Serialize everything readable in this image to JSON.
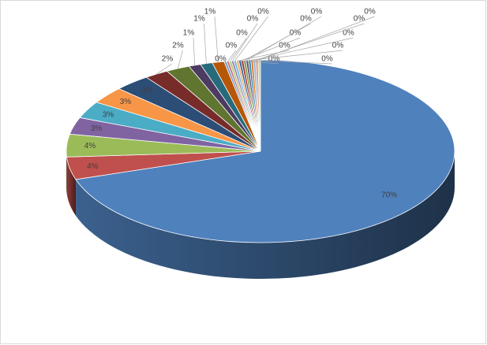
{
  "chart_data": {
    "type": "pie3d",
    "values": [
      70,
      4,
      4,
      3,
      3,
      3,
      3,
      2,
      2,
      1,
      1,
      1,
      0.2,
      0.2,
      0.2,
      0.2,
      0.2,
      0.2,
      0.2,
      0.2,
      0.2,
      0.2,
      0.2,
      0.2,
      0.2,
      0.2,
      0.2
    ],
    "value_labels": [
      "70%",
      "4%",
      "4%",
      "3%",
      "3%",
      "3%",
      "3%",
      "2%",
      "2%",
      "1%",
      "1%",
      "1%",
      "0%",
      "0%",
      "0%",
      "0%",
      "0%",
      "0%",
      "0%",
      "0%",
      "0%",
      "0%",
      "0%",
      "0%",
      "0%",
      "0%",
      "0%"
    ],
    "colors": [
      "#4f81bd",
      "#c0504d",
      "#9bbb59",
      "#8064a2",
      "#4bacc6",
      "#f79646",
      "#2c4d75",
      "#772c2a",
      "#5f7530",
      "#4d3b62",
      "#276a7c",
      "#b65708",
      "#729aca",
      "#cd7371",
      "#afc97a",
      "#9983b5",
      "#6fbdd1",
      "#f9ab6b",
      "#3a6599",
      "#9d3a37",
      "#7d9b40",
      "#664f86",
      "#358ba3",
      "#e07a20",
      "#95b3d7",
      "#d99694",
      "#c3d69b"
    ]
  }
}
